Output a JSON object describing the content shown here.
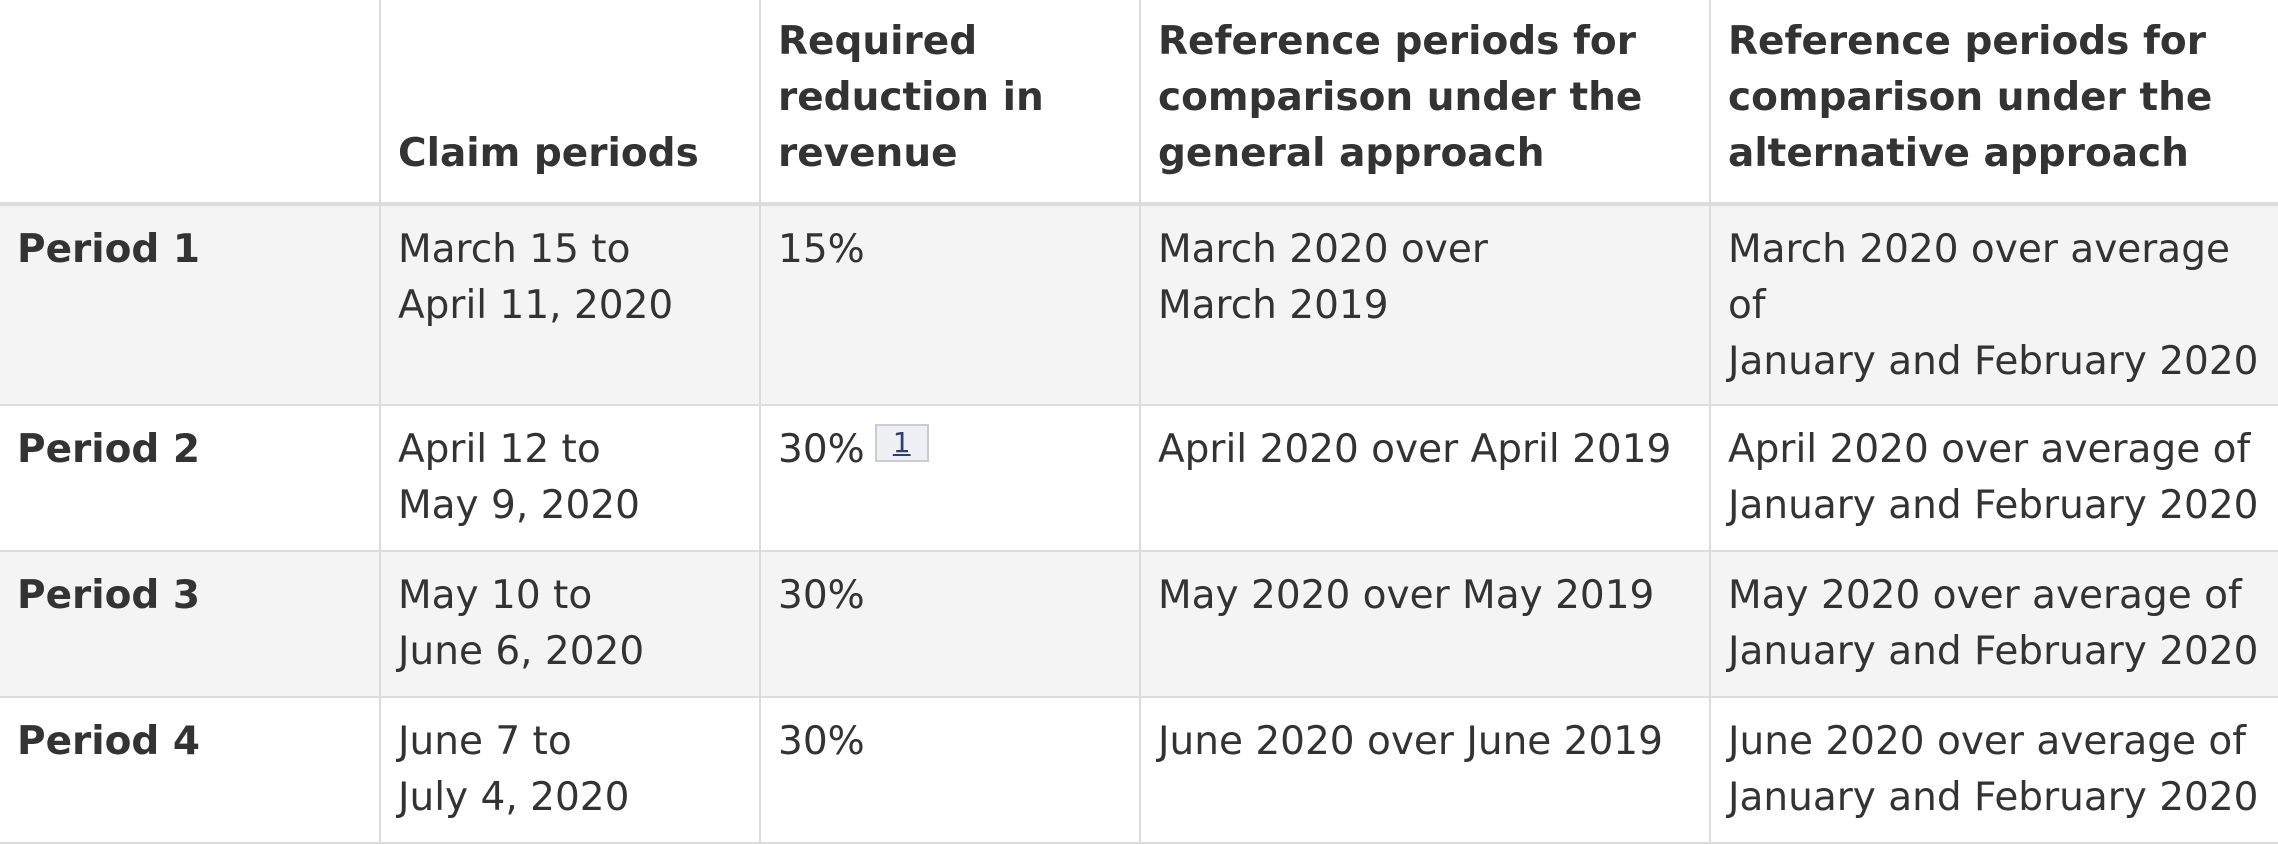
{
  "table": {
    "headers": [
      "",
      "Claim periods",
      "Required reduction in revenue",
      "Reference periods for comparison under the general approach",
      "Reference periods for comparison under the alternative approach"
    ],
    "rows": [
      {
        "period": "Period 1",
        "claim_line1": "March 15 to",
        "claim_line2": "April 11, 2020",
        "reduction": "15%",
        "footnote": "",
        "general_line1": "March 2020 over",
        "general_line2": "March 2019",
        "alternative_line1": "March 2020 over average of",
        "alternative_line2": "January and February 2020"
      },
      {
        "period": "Period 2",
        "claim_line1": "April 12 to",
        "claim_line2": "May 9, 2020",
        "reduction": "30%",
        "footnote": "1",
        "general_line1": "April 2020 over April 2019",
        "general_line2": "",
        "alternative_line1": "April 2020 over average of",
        "alternative_line2": "January and February 2020"
      },
      {
        "period": "Period 3",
        "claim_line1": "May 10 to",
        "claim_line2": "June 6, 2020",
        "reduction": "30%",
        "footnote": "",
        "general_line1": "May 2020 over May 2019",
        "general_line2": "",
        "alternative_line1": "May 2020 over average of",
        "alternative_line2": "January and February 2020"
      },
      {
        "period": "Period 4",
        "claim_line1": "June 7 to",
        "claim_line2": "July 4, 2020",
        "reduction": "30%",
        "footnote": "",
        "general_line1": "June 2020 over June 2019",
        "general_line2": "",
        "alternative_line1": "June 2020 over average of",
        "alternative_line2": "January and February 2020"
      }
    ]
  }
}
